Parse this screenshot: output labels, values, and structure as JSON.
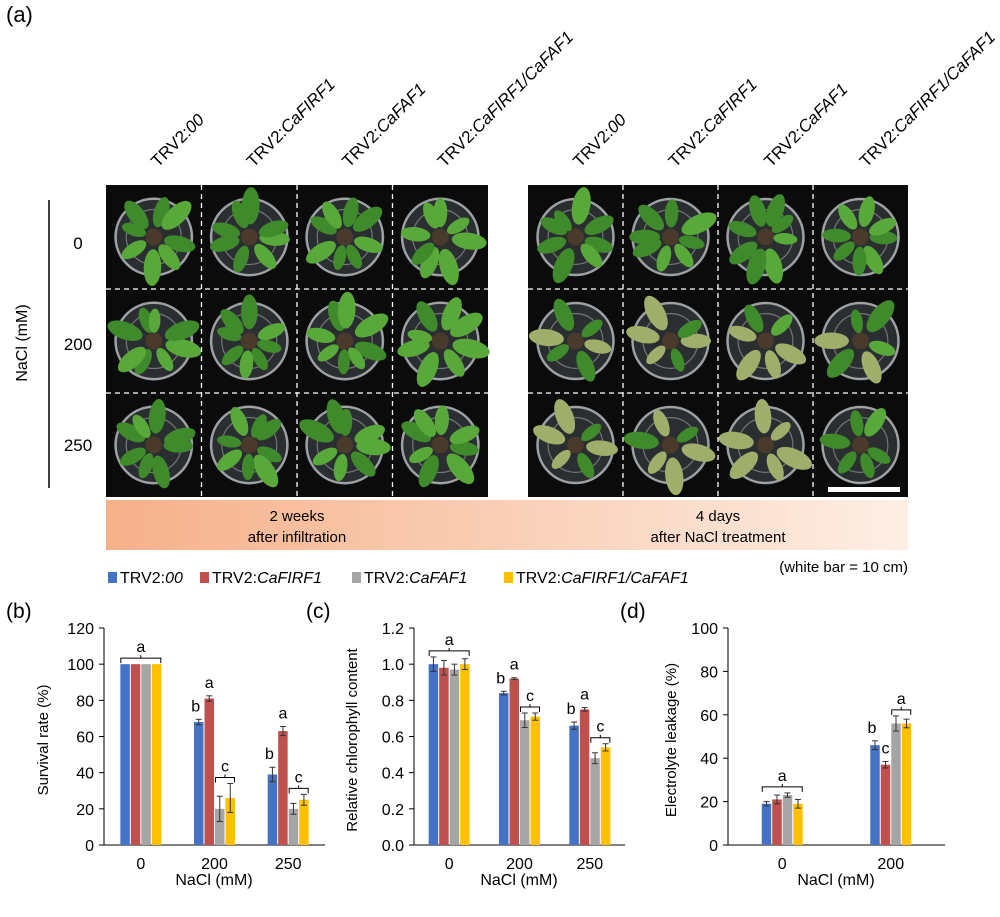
{
  "panel_a": {
    "label": "(a)",
    "columns": [
      {
        "prefix": "TRV2:",
        "gene": "00"
      },
      {
        "prefix": "TRV2:",
        "gene": "CaFIRF1"
      },
      {
        "prefix": "TRV2:",
        "gene": "CaFAF1"
      },
      {
        "prefix": "TRV2:",
        "gene": "CaFIRF1/CaFAF1"
      }
    ],
    "row_axis_label": "NaCl (mM)",
    "rows": [
      "0",
      "200",
      "250"
    ],
    "banner_left": [
      "2 weeks",
      "after infiltration"
    ],
    "banner_right": [
      "4 days",
      "after NaCl treatment"
    ],
    "scale_note": "(white bar = 10 cm)",
    "colors": {
      "photo_bg": "#0b0b0b",
      "leaf": "#58a93a",
      "leaf_dark": "#3f8a2a",
      "pot": "#c9cfd3",
      "banner_start": "#f6b089",
      "banner_end": "#fdeee4"
    }
  },
  "legend": [
    {
      "prefix": "TRV2:",
      "gene": "00",
      "color": "#4472C4"
    },
    {
      "prefix": "TRV2:",
      "gene": "CaFIRF1",
      "color": "#C0504D"
    },
    {
      "prefix": "TRV2:",
      "gene": "CaFAF1",
      "color": "#A5A5A5"
    },
    {
      "prefix": "TRV2:",
      "gene": "CaFIRF1/CaFAF1",
      "color": "#FFC000"
    }
  ],
  "chart_data": [
    {
      "panel": "(b)",
      "type": "bar",
      "ylabel": "Survival rate (%)",
      "xlabel": "NaCl (mM)",
      "ylim": [
        0,
        120
      ],
      "yticks": [
        "0",
        "20",
        "40",
        "60",
        "80",
        "100",
        "120"
      ],
      "categories": [
        "0",
        "200",
        "250"
      ],
      "series": [
        {
          "name": "TRV2:00",
          "values": [
            100,
            68,
            39
          ],
          "errors": [
            0,
            1.5,
            4
          ]
        },
        {
          "name": "TRV2:CaFIRF1",
          "values": [
            100,
            81,
            63
          ],
          "errors": [
            0,
            1.5,
            2.5
          ]
        },
        {
          "name": "TRV2:CaFAF1",
          "values": [
            100,
            20,
            20
          ],
          "errors": [
            0,
            7,
            3
          ]
        },
        {
          "name": "TRV2:CaFIRF1/CaFAF1",
          "values": [
            100,
            26,
            25
          ],
          "errors": [
            0,
            8,
            3
          ]
        }
      ],
      "letters": [
        {
          "category": 0,
          "text": "a",
          "span": [
            0,
            3
          ]
        },
        {
          "category": 1,
          "text": "b",
          "span": [
            0,
            0
          ]
        },
        {
          "category": 1,
          "text": "a",
          "span": [
            1,
            1
          ]
        },
        {
          "category": 1,
          "text": "c",
          "span": [
            2,
            3
          ]
        },
        {
          "category": 2,
          "text": "b",
          "span": [
            0,
            0
          ]
        },
        {
          "category": 2,
          "text": "a",
          "span": [
            1,
            1
          ]
        },
        {
          "category": 2,
          "text": "c",
          "span": [
            2,
            3
          ]
        }
      ]
    },
    {
      "panel": "(c)",
      "type": "bar",
      "ylabel": "Relative chlorophyll content",
      "xlabel": "NaCl (mM)",
      "ylim": [
        0,
        1.2
      ],
      "yticks": [
        "0.0",
        "0.2",
        "0.4",
        "0.6",
        "0.8",
        "1.0",
        "1.2"
      ],
      "categories": [
        "0",
        "200",
        "250"
      ],
      "series": [
        {
          "name": "TRV2:00",
          "values": [
            1.0,
            0.84,
            0.66
          ],
          "errors": [
            0.04,
            0.01,
            0.02
          ]
        },
        {
          "name": "TRV2:CaFIRF1",
          "values": [
            0.98,
            0.92,
            0.75
          ],
          "errors": [
            0.04,
            0.005,
            0.01
          ]
        },
        {
          "name": "TRV2:CaFAF1",
          "values": [
            0.97,
            0.69,
            0.48
          ],
          "errors": [
            0.03,
            0.04,
            0.03
          ]
        },
        {
          "name": "TRV2:CaFIRF1/CaFAF1",
          "values": [
            1.0,
            0.71,
            0.54
          ],
          "errors": [
            0.03,
            0.02,
            0.02
          ]
        }
      ],
      "letters": [
        {
          "category": 0,
          "text": "a",
          "span": [
            0,
            3
          ]
        },
        {
          "category": 1,
          "text": "b",
          "span": [
            0,
            0
          ]
        },
        {
          "category": 1,
          "text": "a",
          "span": [
            1,
            1
          ]
        },
        {
          "category": 1,
          "text": "c",
          "span": [
            2,
            3
          ]
        },
        {
          "category": 2,
          "text": "b",
          "span": [
            0,
            0
          ]
        },
        {
          "category": 2,
          "text": "a",
          "span": [
            1,
            1
          ]
        },
        {
          "category": 2,
          "text": "c",
          "span": [
            2,
            3
          ]
        }
      ]
    },
    {
      "panel": "(d)",
      "type": "bar",
      "ylabel": "Electrolyte leakage (%)",
      "xlabel": "NaCl (mM)",
      "ylim": [
        0,
        100
      ],
      "yticks": [
        "0",
        "20",
        "40",
        "60",
        "80",
        "100"
      ],
      "categories": [
        "0",
        "200"
      ],
      "series": [
        {
          "name": "TRV2:00",
          "values": [
            19,
            46
          ],
          "errors": [
            1,
            2
          ]
        },
        {
          "name": "TRV2:CaFIRF1",
          "values": [
            21,
            37
          ],
          "errors": [
            2,
            1.5
          ]
        },
        {
          "name": "TRV2:CaFAF1",
          "values": [
            23,
            56
          ],
          "errors": [
            1,
            3.5
          ]
        },
        {
          "name": "TRV2:CaFIRF1/CaFAF1",
          "values": [
            19,
            56
          ],
          "errors": [
            2,
            2
          ]
        }
      ],
      "letters": [
        {
          "category": 0,
          "text": "a",
          "span": [
            0,
            3
          ]
        },
        {
          "category": 1,
          "text": "b",
          "span": [
            0,
            0
          ]
        },
        {
          "category": 1,
          "text": "c",
          "span": [
            1,
            1
          ]
        },
        {
          "category": 1,
          "text": "a",
          "span": [
            2,
            3
          ]
        }
      ]
    }
  ]
}
